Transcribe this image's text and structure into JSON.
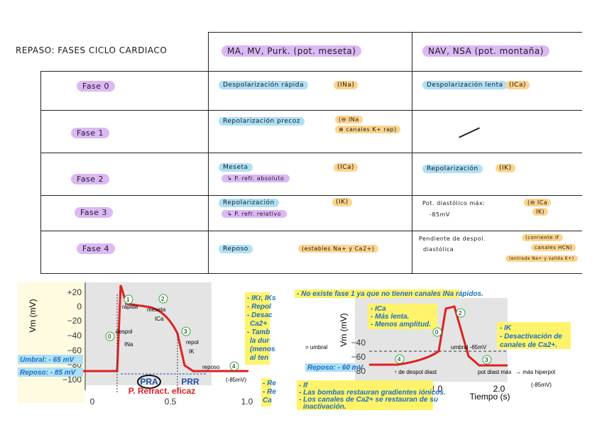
{
  "header": {
    "title": "REPASO: FASES CICLO CARDIACO",
    "col1": "MA, MV, Purk. (pot. meseta)",
    "col2": "NAV, NSA (pot. montaña)"
  },
  "table": {
    "rows": [
      {
        "phase": "Fase 0",
        "c1": "Despolarización rápida",
        "c1_ion": "(INa)",
        "c2": "Despolarización lenta",
        "c2_ion": "(ICa)"
      },
      {
        "phase": "Fase 1",
        "c1": "Repolarización precoz",
        "c1_ion": "(⊖ INa",
        "c1_ion2": "⊕ canales K+ rap)"
      },
      {
        "phase": "Fase 2",
        "c1": "Meseta",
        "c1_ion": "(ICa)",
        "c1_sub": "↳ P. refr. absoluto",
        "c2": "Repolarización",
        "c2_ion": "(IK)"
      },
      {
        "phase": "Fase 3",
        "c1": "Repolarización",
        "c1_ion": "(IK)",
        "c1_sub": "↳ P. refr. relativo",
        "c2": "Pot. diastólico máx:",
        "c2_sub": "-85mV",
        "c2_ion": "(⊖ ICa",
        "c2_ion2": "IK)"
      },
      {
        "phase": "Fase 4",
        "c1": "Reposo",
        "c1_ion": "(estables Na+ y Ca2+)",
        "c2": "Pendiente de despol.",
        "c2_sub": "diastólica",
        "c2_ion": "(corriente If",
        "c2_ion2": "canales HCN)",
        "c2_ion3": "(entrada Na+ y salida K+)"
      }
    ]
  },
  "left_chart": {
    "y_label": "Vm (mV)",
    "y_ticks": [
      "+20",
      "0",
      "−20",
      "−40",
      "−60",
      "−80",
      "−100"
    ],
    "x_ticks": [
      "0",
      "0.5",
      "1.0"
    ],
    "umbral": "Umbral: - 65 mV",
    "reposo": "Reposo: - 85 mV",
    "pra": "PRA",
    "prr": "PRR",
    "refract": "P. Refract. eficaz",
    "notes": [
      "- IKr, IKs",
      "- Repol",
      "- Desac",
      "Ca2+",
      "- Tamb",
      "la dur",
      "(menos",
      "al ten"
    ],
    "notes2": [
      "- Re",
      "- Re",
      "Ca"
    ],
    "hand": {
      "p0": "0",
      "despol": "despol",
      "ina": "INa",
      "p1": "1",
      "rapida": "rápida",
      "p2": "2",
      "meseta": "meseta",
      "ica": "ICa",
      "p3": "3",
      "repol": "repol",
      "ik": "IK",
      "p4": "4",
      "rep": "reposo",
      "mv": "(-85mV)"
    }
  },
  "right_chart": {
    "y_label": "Vm (mV)",
    "y_ticks": [
      "−40",
      "−60",
      "−80"
    ],
    "x_ticks": [
      "1.0",
      "2.0"
    ],
    "x_label": "Tiempo (s)",
    "top_note": "- No existe fase 1 ya que no tienen canales INa rápidos.",
    "ica_notes": [
      "- ICa",
      "- Más lenta.",
      "- Menos amplitud."
    ],
    "ik_notes": [
      "- IK",
      "- Desactivación de",
      "canales de Ca2+."
    ],
    "reposo": "Reposo: - 60 mV",
    "if_notes": [
      "- If",
      "- Las bombas restauran gradientes iónicos.",
      "- Los canales de Ca2+ se restauran de su",
      "inactivación."
    ],
    "hand": {
      "umbral": "= umbral",
      "p0": "0",
      "p2": "2",
      "p3": "3",
      "p4": "4",
      "umbral2": "umbral -65mV",
      "pend": "↑ de despol diast",
      "pdm": "pot diast máx",
      "hiper": "→ más hiperpol",
      "mv": "(-85mV)"
    }
  }
}
